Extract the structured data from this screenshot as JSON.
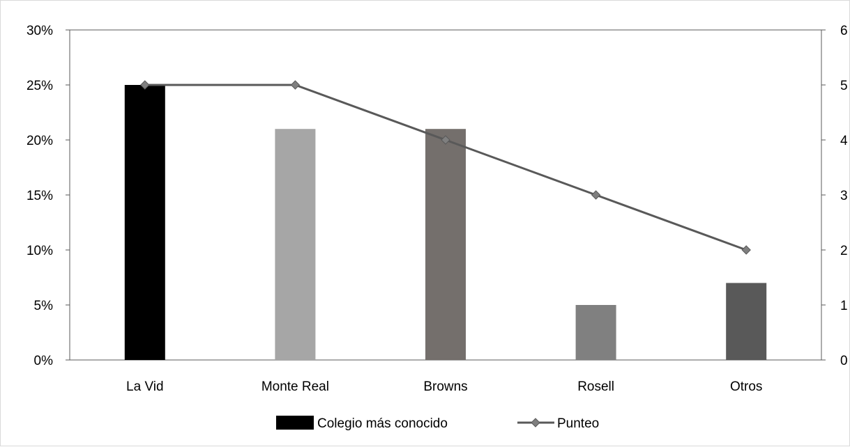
{
  "chart_data": {
    "type": "bar",
    "categories": [
      "La Vid",
      "Monte Real",
      "Browns",
      "Rosell",
      "Otros"
    ],
    "series": [
      {
        "name": "Colegio más conocido",
        "type": "bar",
        "axis": "left",
        "values": [
          25,
          21,
          21,
          5,
          7
        ],
        "colors": [
          "#000000",
          "#a6a6a6",
          "#746f6c",
          "#808080",
          "#595959"
        ]
      },
      {
        "name": "Punteo",
        "type": "line",
        "axis": "right",
        "values": [
          5,
          5,
          4,
          3,
          2
        ],
        "color": "#595959",
        "marker": "diamond"
      }
    ],
    "y_left": {
      "min": 0,
      "max": 30,
      "step": 5,
      "tick_labels": [
        "0%",
        "5%",
        "10%",
        "15%",
        "20%",
        "25%",
        "30%"
      ]
    },
    "y_right": {
      "min": 0,
      "max": 6,
      "step": 1,
      "tick_labels": [
        "0",
        "1",
        "2",
        "3",
        "4",
        "5",
        "6"
      ]
    },
    "grid": false,
    "legend_position": "bottom"
  }
}
